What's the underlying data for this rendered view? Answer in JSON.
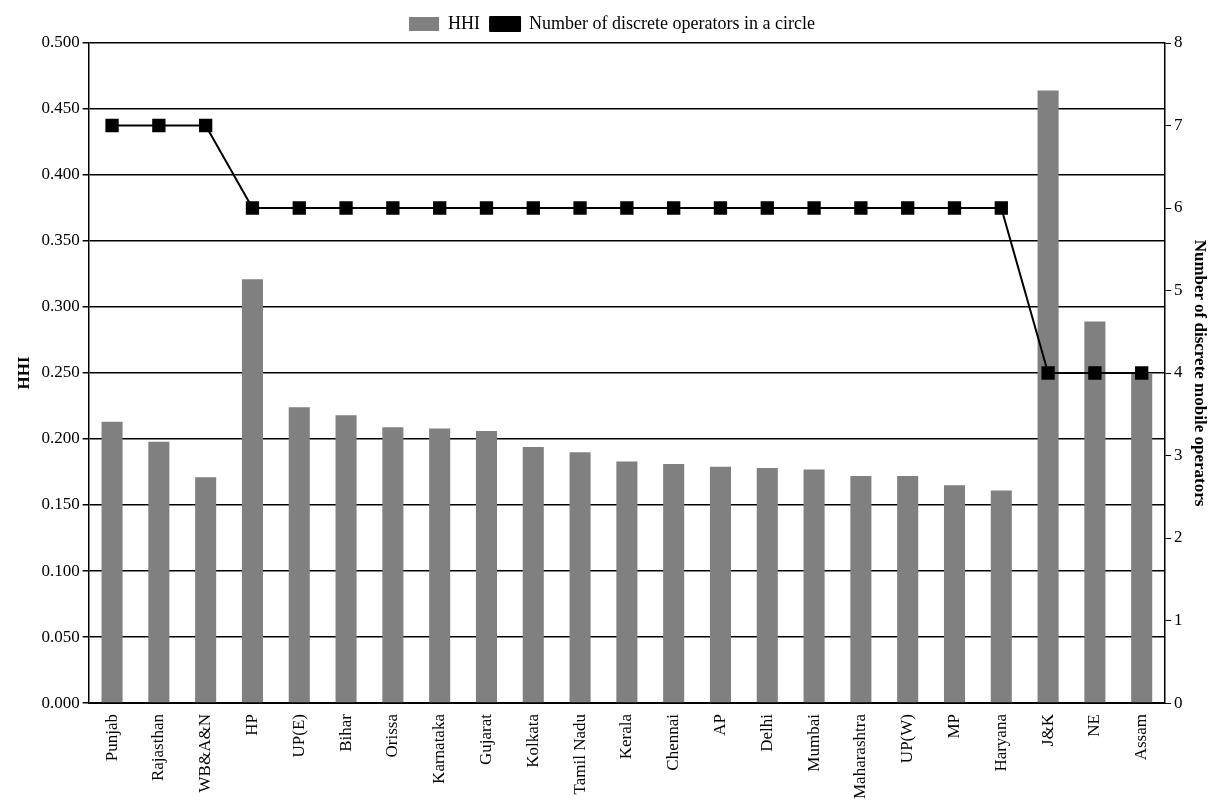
{
  "chart_data": {
    "type": "bar",
    "ylabel": "HHI",
    "y2label": "Number of discrete mobile operators",
    "categories": [
      "Punjab",
      "Rajasthan",
      "WB&A&N",
      "HP",
      "UP(E)",
      "Bihar",
      "Orissa",
      "Karnataka",
      "Gujarat",
      "Kolkata",
      "Tamil Nadu",
      "Kerala",
      "Chennai",
      "AP",
      "Delhi",
      "Mumbai",
      "Maharashtra",
      "UP(W)",
      "MP",
      "Haryana",
      "J&K",
      "NE",
      "Assam"
    ],
    "series": [
      {
        "name": "HHI",
        "color": "#808080",
        "values": [
          0.213,
          0.198,
          0.171,
          0.321,
          0.224,
          0.218,
          0.209,
          0.208,
          0.206,
          0.194,
          0.19,
          0.183,
          0.181,
          0.179,
          0.178,
          0.177,
          0.172,
          0.172,
          0.165,
          0.161,
          0.464,
          0.289,
          0.25
        ]
      },
      {
        "name": "Number of discrete operators in a circle",
        "type": "line",
        "axis": "y2",
        "color": "#000000",
        "marker": "square",
        "line_style": "solid",
        "values": [
          7,
          7,
          7,
          6,
          6,
          6,
          6,
          6,
          6,
          6,
          6,
          6,
          6,
          6,
          6,
          6,
          6,
          6,
          6,
          6,
          4,
          4,
          4
        ]
      }
    ],
    "ylim": [
      0,
      0.5
    ],
    "yticks": [
      {
        "value": 0,
        "label": "0.000"
      },
      {
        "value": 0.05,
        "label": "0.050"
      },
      {
        "value": 0.1,
        "label": "0.100"
      },
      {
        "value": 0.15,
        "label": "0.150"
      },
      {
        "value": 0.2,
        "label": "0.200"
      },
      {
        "value": 0.25,
        "label": "0.250"
      },
      {
        "value": 0.3,
        "label": "0.300"
      },
      {
        "value": 0.35,
        "label": "0.350"
      },
      {
        "value": 0.4,
        "label": "0.400"
      },
      {
        "value": 0.45,
        "label": "0.450"
      },
      {
        "value": 0.5,
        "label": "0.500"
      }
    ],
    "y2lim": [
      0,
      8
    ],
    "y2ticks": [
      0,
      1,
      2,
      3,
      4,
      5,
      6,
      7,
      8
    ],
    "grid": "y",
    "legend": "top"
  }
}
